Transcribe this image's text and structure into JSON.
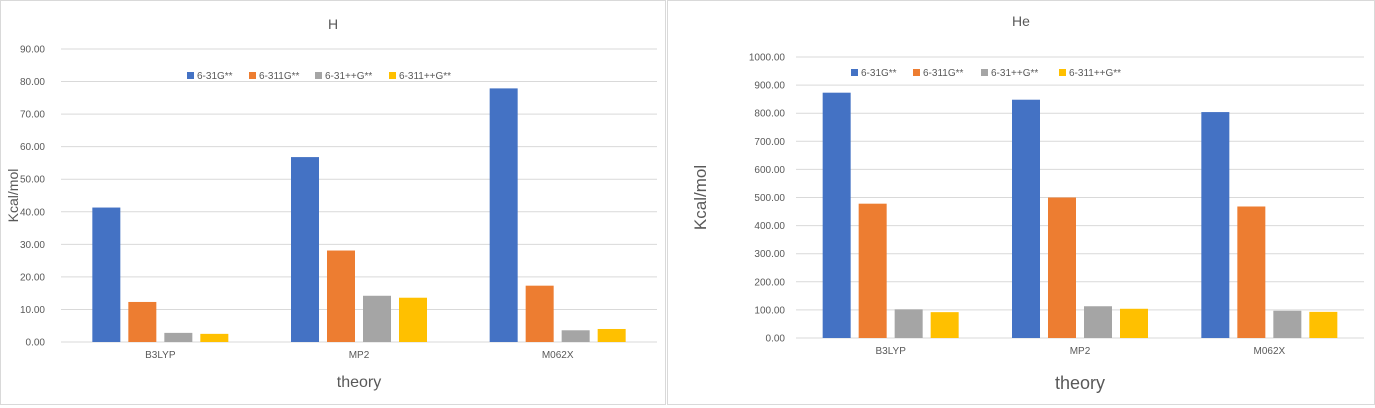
{
  "chart_data": [
    {
      "type": "bar",
      "title": "H",
      "xlabel": "theory",
      "ylabel": "Kcal/mol",
      "categories": [
        "B3LYP",
        "MP2",
        "M062X"
      ],
      "ylim": [
        0,
        90
      ],
      "yticks": [
        "0.00",
        "10.00",
        "20.00",
        "30.00",
        "40.00",
        "50.00",
        "60.00",
        "70.00",
        "80.00",
        "90.00"
      ],
      "grid": true,
      "legend_position": "top",
      "series": [
        {
          "name": "6-31G**",
          "color": "#4472c4",
          "values": [
            41.3,
            56.8,
            77.9
          ]
        },
        {
          "name": "6-311G**",
          "color": "#ed7d31",
          "values": [
            12.3,
            28.1,
            17.3
          ]
        },
        {
          "name": "6-31++G**",
          "color": "#a5a5a5",
          "values": [
            2.8,
            14.2,
            3.6
          ]
        },
        {
          "name": "6-311++G**",
          "color": "#ffc000",
          "values": [
            2.5,
            13.6,
            4.0
          ]
        }
      ]
    },
    {
      "type": "bar",
      "title": "He",
      "xlabel": "theory",
      "ylabel": "Kcal/mol",
      "categories": [
        "B3LYP",
        "MP2",
        "M062X"
      ],
      "ylim": [
        0,
        1000
      ],
      "yticks": [
        "0.00",
        "100.00",
        "200.00",
        "300.00",
        "400.00",
        "500.00",
        "600.00",
        "700.00",
        "800.00",
        "900.00",
        "1000.00"
      ],
      "grid": true,
      "legend_position": "top",
      "series": [
        {
          "name": "6-31G**",
          "color": "#4472c4",
          "values": [
            873,
            848,
            804
          ]
        },
        {
          "name": "6-311G**",
          "color": "#ed7d31",
          "values": [
            478,
            500,
            468
          ]
        },
        {
          "name": "6-31++G**",
          "color": "#a5a5a5",
          "values": [
            102,
            113,
            97
          ]
        },
        {
          "name": "6-311++G**",
          "color": "#ffc000",
          "values": [
            92,
            104,
            93
          ]
        }
      ]
    }
  ]
}
